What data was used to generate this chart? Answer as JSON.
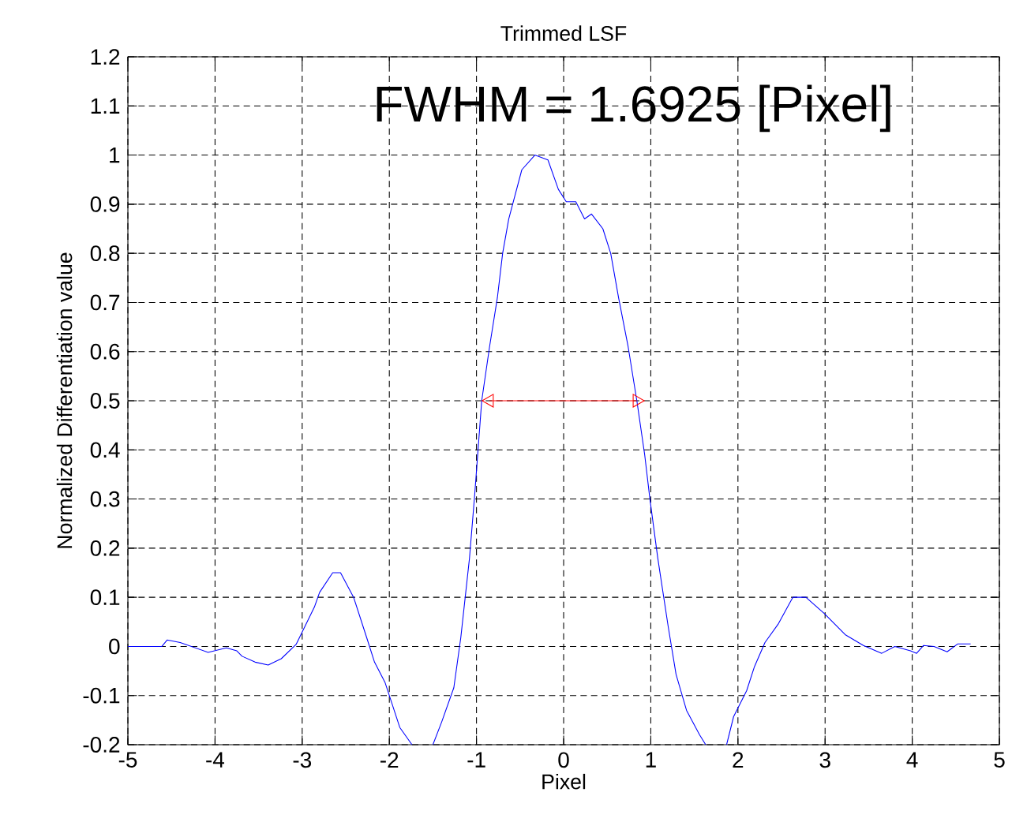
{
  "chart_data": {
    "type": "line",
    "title": "Trimmed LSF",
    "xlabel": "Pixel",
    "ylabel": "Normalized Differentiation value",
    "annotations": [
      "FWHM = 1.6925 [Pixel]"
    ],
    "xlim": [
      -5,
      5
    ],
    "ylim": [
      -0.2,
      1.2
    ],
    "xticks": [
      -5,
      -4,
      -3,
      -2,
      -1,
      0,
      1,
      2,
      3,
      4,
      5
    ],
    "yticks": [
      -0.2,
      -0.1,
      0,
      0.1,
      0.2,
      0.3,
      0.4,
      0.5,
      0.6,
      0.7,
      0.8,
      0.9,
      1,
      1.1,
      1.2
    ],
    "grid": true,
    "series": [
      {
        "color": "#0000ff",
        "x": [
          -5,
          -4.61,
          -4.55,
          -4.4,
          -4.08,
          -3.87,
          -3.75,
          -3.69,
          -3.54,
          -3.39,
          -3.24,
          -3.07,
          -2.86,
          -2.8,
          -2.65,
          -2.56,
          -2.41,
          -2.26,
          -2.17,
          -2.05,
          -1.88,
          -1.74,
          -1.62,
          -1.5,
          -1.4,
          -1.26,
          -1.18,
          -1.08,
          -1.02,
          -0.94,
          -0.85,
          -0.76,
          -0.7,
          -0.63,
          -0.48,
          -0.33,
          -0.18,
          -0.06,
          0.03,
          0.14,
          0.24,
          0.32,
          0.45,
          0.54,
          0.63,
          0.74,
          0.84,
          0.93,
          0.99,
          1.08,
          1.2,
          1.29,
          1.41,
          1.56,
          1.63,
          1.75,
          1.87,
          1.95,
          2.1,
          2.19,
          2.31,
          2.46,
          2.63,
          2.78,
          2.99,
          3.23,
          3.44,
          3.65,
          3.8,
          3.98,
          4.05,
          4.13,
          4.25,
          4.4,
          4.52,
          4.67
        ],
        "values": [
          0,
          0,
          0.013,
          0.008,
          -0.012,
          -0.003,
          -0.009,
          -0.02,
          -0.032,
          -0.038,
          -0.025,
          0.004,
          0.08,
          0.11,
          0.15,
          0.15,
          0.1,
          0.018,
          -0.032,
          -0.073,
          -0.165,
          -0.2,
          null,
          -0.2,
          -0.154,
          -0.084,
          0.018,
          0.18,
          0.31,
          0.5,
          0.61,
          0.71,
          0.8,
          0.87,
          0.97,
          1,
          0.99,
          0.93,
          0.905,
          0.905,
          0.87,
          0.88,
          0.85,
          0.8,
          0.71,
          0.61,
          0.5,
          0.39,
          0.3,
          0.18,
          0.04,
          -0.057,
          -0.13,
          -0.18,
          -0.2,
          null,
          -0.2,
          -0.143,
          -0.09,
          -0.041,
          0.008,
          0.045,
          0.1,
          0.1,
          0.067,
          0.024,
          0.002,
          -0.014,
          0,
          -0.009,
          -0.014,
          0.002,
          0,
          -0.011,
          0.005,
          0.005
        ]
      },
      {
        "color": "#ff0000",
        "marker": "triangle",
        "x": [
          -0.85,
          0.84
        ],
        "values": [
          0.5,
          0.5
        ]
      }
    ]
  }
}
